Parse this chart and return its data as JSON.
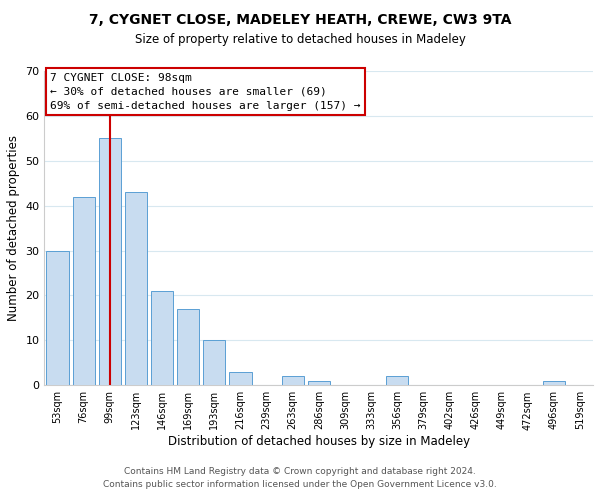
{
  "title": "7, CYGNET CLOSE, MADELEY HEATH, CREWE, CW3 9TA",
  "subtitle": "Size of property relative to detached houses in Madeley",
  "xlabel": "Distribution of detached houses by size in Madeley",
  "ylabel": "Number of detached properties",
  "bar_labels": [
    "53sqm",
    "76sqm",
    "99sqm",
    "123sqm",
    "146sqm",
    "169sqm",
    "193sqm",
    "216sqm",
    "239sqm",
    "263sqm",
    "286sqm",
    "309sqm",
    "333sqm",
    "356sqm",
    "379sqm",
    "402sqm",
    "426sqm",
    "449sqm",
    "472sqm",
    "496sqm",
    "519sqm"
  ],
  "bar_values": [
    30,
    42,
    55,
    43,
    21,
    17,
    10,
    3,
    0,
    2,
    1,
    0,
    0,
    2,
    0,
    0,
    0,
    0,
    0,
    1,
    0
  ],
  "bar_color": "#c8dcf0",
  "bar_edge_color": "#5a9fd4",
  "vline_x": 2,
  "vline_color": "#cc0000",
  "ylim": [
    0,
    70
  ],
  "yticks": [
    0,
    10,
    20,
    30,
    40,
    50,
    60,
    70
  ],
  "annotation_title": "7 CYGNET CLOSE: 98sqm",
  "annotation_line1": "← 30% of detached houses are smaller (69)",
  "annotation_line2": "69% of semi-detached houses are larger (157) →",
  "annotation_box_color": "#ffffff",
  "annotation_box_edge": "#cc0000",
  "footer_line1": "Contains HM Land Registry data © Crown copyright and database right 2024.",
  "footer_line2": "Contains public sector information licensed under the Open Government Licence v3.0.",
  "background_color": "#ffffff",
  "grid_color": "#d8e8f0"
}
